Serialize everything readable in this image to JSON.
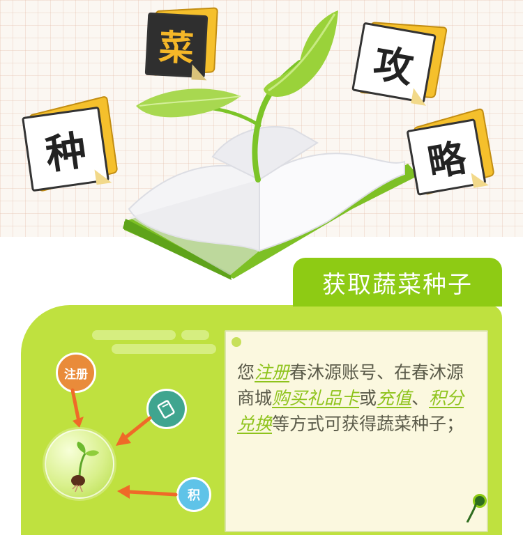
{
  "tiles": {
    "zhong": "种",
    "cai": "菜",
    "gong": "攻",
    "lue": "略"
  },
  "section": {
    "title": "获取蔬菜种子"
  },
  "badges": {
    "register": "注册",
    "points": "积"
  },
  "note": {
    "p1": "您",
    "link_register": "注册",
    "p2": "春沐源账号、在春沐源商城",
    "link_gift": "购买礼品卡",
    "p3": "或",
    "link_recharge": "充值",
    "p4": "、",
    "link_points": "积分兑换",
    "p5": "等方式可获得蔬菜种子；"
  },
  "colors": {
    "accent_green": "#8ecb14",
    "panel_green": "#bfe13f",
    "tile_yellow": "#f5c02c",
    "badge_orange": "#e98b3a",
    "badge_teal": "#3fa58f",
    "badge_sky": "#5fc3e8"
  },
  "icons": [
    "card-icon",
    "seedling-icon",
    "arrow-icon",
    "leaf-icon",
    "book-icon"
  ]
}
